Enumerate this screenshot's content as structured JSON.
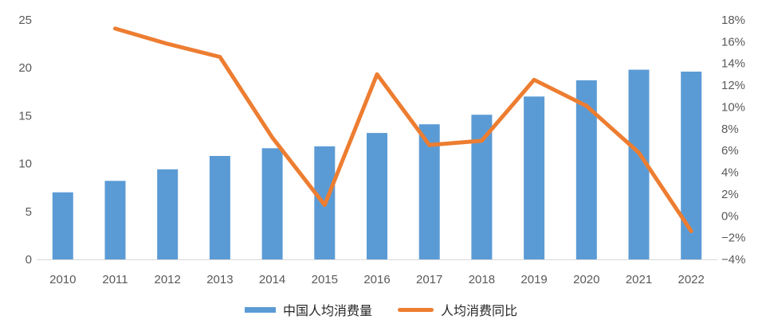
{
  "chart_data": {
    "type": "bar",
    "subtype": "combo-bar-line-dual-axis",
    "title": "",
    "xlabel": "",
    "ylabel_left": "",
    "ylabel_right": "",
    "grid": false,
    "legend_position": "bottom-center",
    "categories": [
      "2010",
      "2011",
      "2012",
      "2013",
      "2014",
      "2015",
      "2016",
      "2017",
      "2018",
      "2019",
      "2020",
      "2021",
      "2022"
    ],
    "series": [
      {
        "name": "中国人均消费量",
        "type": "bar",
        "axis": "left",
        "color": "#5B9BD5",
        "values": [
          7.0,
          8.2,
          9.4,
          10.8,
          11.6,
          11.8,
          13.2,
          14.1,
          15.1,
          17.0,
          18.7,
          19.8,
          19.6
        ]
      },
      {
        "name": "人均消费同比",
        "type": "line",
        "axis": "right",
        "color": "#ED7D31",
        "values": [
          null,
          17.2,
          15.8,
          14.6,
          7.2,
          1.0,
          13.0,
          6.5,
          6.9,
          12.5,
          10.1,
          5.8,
          -1.4
        ]
      }
    ],
    "left_axis": {
      "min": 0,
      "max": 25,
      "step": 5,
      "ticks": [
        "0",
        "5",
        "10",
        "15",
        "20",
        "25"
      ]
    },
    "right_axis": {
      "min": -4,
      "max": 18,
      "step": 2,
      "ticks": [
        "−4%",
        "−2%",
        "0%",
        "2%",
        "4%",
        "6%",
        "8%",
        "10%",
        "12%",
        "14%",
        "16%",
        "18%"
      ]
    }
  },
  "legend": {
    "items": [
      {
        "label": "中国人均消费量",
        "color": "#5B9BD5",
        "shape": "rect"
      },
      {
        "label": "人均消费同比",
        "color": "#ED7D31",
        "shape": "line"
      }
    ]
  },
  "colors": {
    "bar": "#5B9BD5",
    "line": "#ED7D31",
    "axis_text": "#595959",
    "axis_line": "#D9D9D9",
    "background": "#FFFFFF"
  }
}
